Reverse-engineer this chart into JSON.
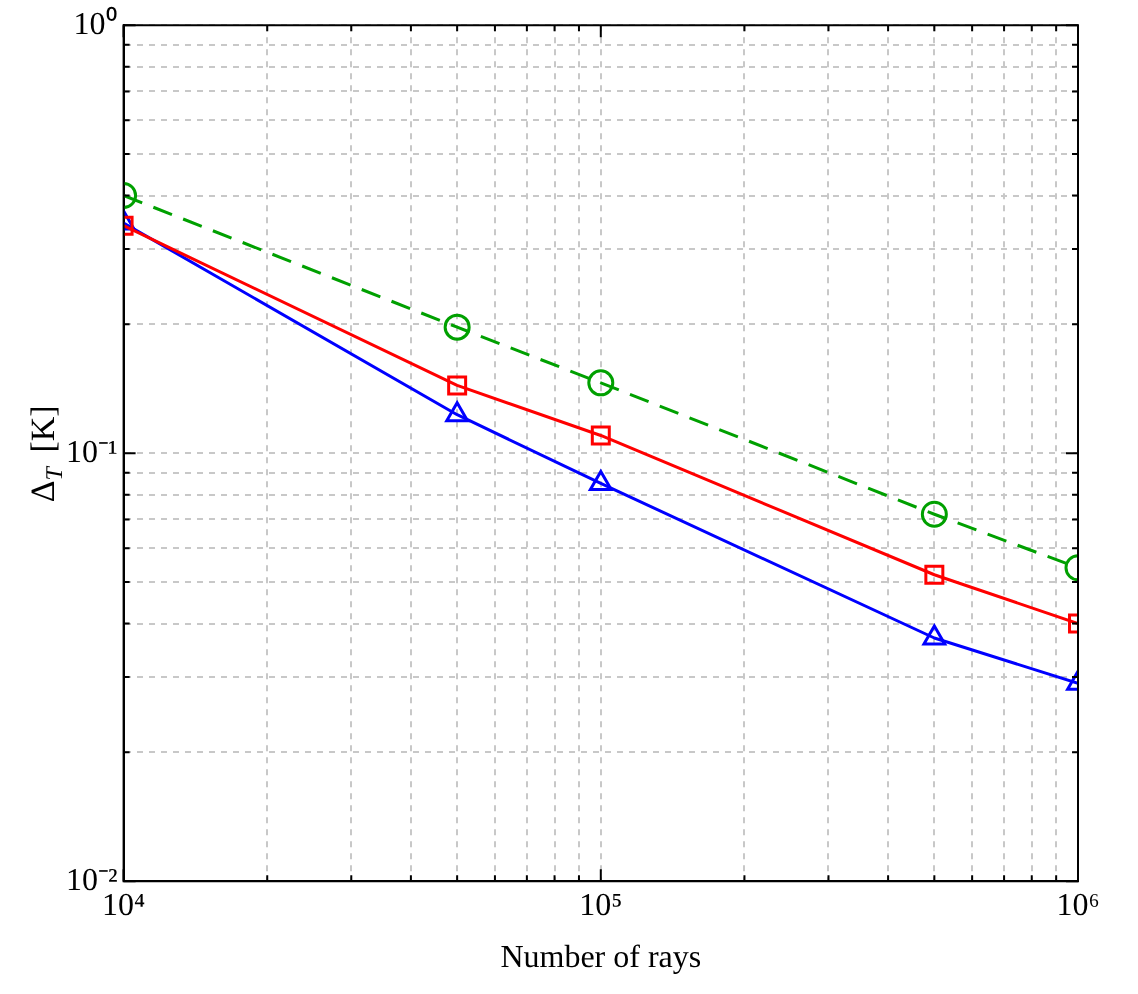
{
  "chart_data": {
    "type": "line",
    "xlabel": "Number of rays",
    "ylabel": "Δ$_{T}$ [K]",
    "log": "xy",
    "grid": true,
    "x": [
      10000,
      50000,
      100000,
      500000,
      1000000
    ],
    "xlim": [
      10000,
      1000000
    ],
    "xticks": [
      {
        "value": 10000,
        "label": "10⁴"
      },
      {
        "value": 20000,
        "label": null
      },
      {
        "value": 30000,
        "label": null
      },
      {
        "value": 40000,
        "label": null
      },
      {
        "value": 50000,
        "label": null
      },
      {
        "value": 60000,
        "label": null
      },
      {
        "value": 70000,
        "label": null
      },
      {
        "value": 80000,
        "label": null
      },
      {
        "value": 90000,
        "label": null
      },
      {
        "value": 100000,
        "label": "10⁵"
      },
      {
        "value": 200000,
        "label": null
      },
      {
        "value": 300000,
        "label": null
      },
      {
        "value": 400000,
        "label": null
      },
      {
        "value": 500000,
        "label": null
      },
      {
        "value": 600000,
        "label": null
      },
      {
        "value": 700000,
        "label": null
      },
      {
        "value": 800000,
        "label": null
      },
      {
        "value": 900000,
        "label": null
      },
      {
        "value": 1000000,
        "label": "10⁶"
      }
    ],
    "ylim": [
      0.01,
      1
    ],
    "yticks": [
      {
        "value": 0.01,
        "label": "10⁻²"
      },
      {
        "value": 0.02,
        "label": null
      },
      {
        "value": 0.03,
        "label": null
      },
      {
        "value": 0.04,
        "label": null
      },
      {
        "value": 0.05,
        "label": null
      },
      {
        "value": 0.06,
        "label": null
      },
      {
        "value": 0.07,
        "label": null
      },
      {
        "value": 0.08,
        "label": null
      },
      {
        "value": 0.09,
        "label": null
      },
      {
        "value": 0.1,
        "label": "10⁻¹"
      },
      {
        "value": 0.2,
        "label": null
      },
      {
        "value": 0.3,
        "label": null
      },
      {
        "value": 0.4,
        "label": null
      },
      {
        "value": 0.5,
        "label": null
      },
      {
        "value": 0.6,
        "label": null
      },
      {
        "value": 0.7,
        "label": null
      },
      {
        "value": 0.8,
        "label": null
      },
      {
        "value": 0.9,
        "label": null
      },
      {
        "value": 1,
        "label": "10⁰"
      }
    ],
    "series": [
      {
        "color": "#00a000",
        "marker": "circle",
        "line_style": "dashed",
        "values": [
          0.4,
          0.197,
          0.146,
          0.072,
          0.054
        ]
      },
      {
        "color": "#ff0000",
        "marker": "square",
        "line_style": "solid",
        "values": [
          0.34,
          0.144,
          0.11,
          0.052,
          0.04
        ]
      },
      {
        "color": "#0000ff",
        "marker": "triangle",
        "line_style": "solid",
        "values": [
          0.345,
          0.123,
          0.085,
          0.037,
          0.029
        ]
      }
    ]
  }
}
